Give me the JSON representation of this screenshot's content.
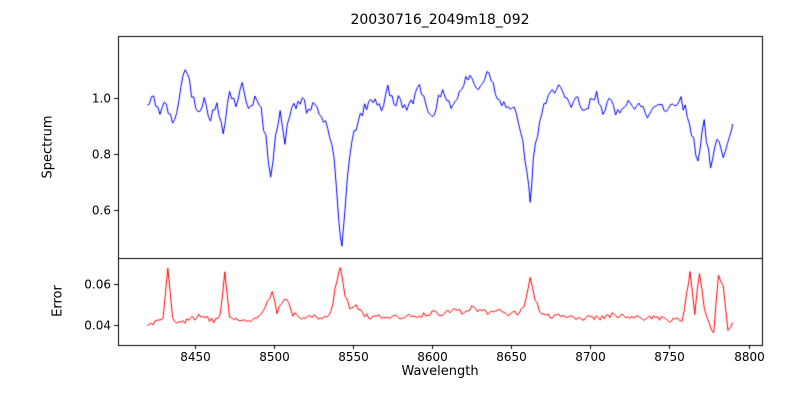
{
  "figure": {
    "title": "20030716_2049m18_092",
    "xlabel": "Wavelength",
    "background": "#ffffff",
    "axes_color": "#000000"
  },
  "chart_data": [
    {
      "type": "line",
      "panel": "top",
      "ylabel": "Spectrum",
      "color": "#0000ff",
      "xlim": [
        8401.5,
        8808.5
      ],
      "ylim": [
        0.43,
        1.22
      ],
      "xticks": [
        8450,
        8500,
        8550,
        8600,
        8650,
        8700,
        8750,
        8800
      ],
      "xtick_labels": [
        "8450",
        "8500",
        "8550",
        "8600",
        "8650",
        "8700",
        "8750",
        "8800"
      ],
      "yticks": [
        0.6,
        0.8,
        1.0
      ],
      "ytick_labels": [
        "0.6",
        "0.8",
        "1.0"
      ],
      "noise_amplitude": 0.02,
      "x": [
        8420,
        8424,
        8428,
        8432,
        8436,
        8440,
        8444,
        8448,
        8452,
        8456,
        8460,
        8464,
        8468,
        8472,
        8476,
        8480,
        8484,
        8488,
        8492,
        8495,
        8498,
        8501,
        8504,
        8507,
        8510,
        8514,
        8518,
        8522,
        8526,
        8530,
        8534,
        8538,
        8541,
        8543,
        8545,
        8548,
        8552,
        8556,
        8560,
        8564,
        8568,
        8572,
        8576,
        8580,
        8584,
        8588,
        8592,
        8596,
        8600,
        8604,
        8608,
        8612,
        8616,
        8620,
        8624,
        8628,
        8632,
        8636,
        8640,
        8644,
        8648,
        8652,
        8656,
        8660,
        8662,
        8664,
        8668,
        8672,
        8676,
        8680,
        8684,
        8688,
        8692,
        8696,
        8700,
        8704,
        8708,
        8712,
        8716,
        8720,
        8724,
        8728,
        8732,
        8736,
        8740,
        8744,
        8748,
        8752,
        8756,
        8760,
        8764,
        8768,
        8772,
        8776,
        8780,
        8784,
        8788,
        8790
      ],
      "y": [
        0.97,
        1.0,
        0.95,
        0.98,
        0.9,
        0.99,
        1.12,
        1.02,
        0.96,
        0.99,
        0.93,
        0.97,
        0.89,
        1.02,
        0.98,
        1.04,
        0.97,
        1.0,
        0.95,
        0.85,
        0.7,
        0.88,
        0.96,
        0.83,
        0.95,
        0.97,
        1.0,
        0.94,
        0.98,
        0.93,
        0.9,
        0.78,
        0.55,
        0.47,
        0.62,
        0.8,
        0.9,
        0.95,
        0.98,
        1.0,
        0.96,
        1.03,
        0.98,
        1.0,
        0.95,
        0.99,
        1.06,
        0.97,
        0.94,
        0.99,
        1.02,
        0.97,
        1.0,
        1.05,
        1.08,
        1.03,
        1.06,
        1.1,
        1.02,
        0.99,
        0.97,
        0.95,
        0.89,
        0.72,
        0.63,
        0.78,
        0.92,
        0.98,
        1.02,
        1.06,
        0.99,
        0.96,
        1.0,
        0.94,
        0.98,
        1.01,
        0.96,
        0.99,
        0.94,
        0.97,
        1.0,
        0.95,
        0.98,
        0.93,
        0.97,
        0.99,
        0.95,
        0.98,
        1.0,
        0.96,
        0.88,
        0.78,
        0.92,
        0.74,
        0.85,
        0.8,
        0.88,
        0.9
      ]
    },
    {
      "type": "line",
      "panel": "bottom",
      "ylabel": "Error",
      "color": "#ff0000",
      "xlim": [
        8401.5,
        8808.5
      ],
      "ylim": [
        0.03,
        0.0725
      ],
      "xticks": [
        8450,
        8500,
        8550,
        8600,
        8650,
        8700,
        8750,
        8800
      ],
      "xtick_labels": [
        "8450",
        "8500",
        "8550",
        "8600",
        "8650",
        "8700",
        "8750",
        "8800"
      ],
      "yticks": [
        0.04,
        0.06
      ],
      "ytick_labels": [
        "0.04",
        "0.06"
      ],
      "noise_amplitude": 0.0012,
      "x": [
        8420,
        8425,
        8430,
        8433,
        8436,
        8440,
        8445,
        8450,
        8455,
        8458,
        8462,
        8466,
        8469,
        8472,
        8476,
        8480,
        8484,
        8488,
        8492,
        8496,
        8499,
        8502,
        8505,
        8508,
        8512,
        8516,
        8520,
        8524,
        8528,
        8532,
        8536,
        8540,
        8542,
        8545,
        8548,
        8552,
        8556,
        8560,
        8564,
        8568,
        8572,
        8576,
        8580,
        8584,
        8588,
        8592,
        8596,
        8600,
        8605,
        8610,
        8615,
        8620,
        8625,
        8630,
        8635,
        8640,
        8645,
        8650,
        8655,
        8658,
        8662,
        8665,
        8668,
        8672,
        8676,
        8680,
        8684,
        8688,
        8692,
        8696,
        8700,
        8705,
        8710,
        8715,
        8720,
        8725,
        8730,
        8735,
        8740,
        8745,
        8750,
        8755,
        8758,
        8761,
        8763,
        8766,
        8769,
        8772,
        8775,
        8778,
        8781,
        8784,
        8787,
        8790
      ],
      "y": [
        0.04,
        0.041,
        0.042,
        0.067,
        0.043,
        0.041,
        0.042,
        0.043,
        0.045,
        0.043,
        0.042,
        0.044,
        0.065,
        0.044,
        0.042,
        0.043,
        0.042,
        0.043,
        0.044,
        0.052,
        0.055,
        0.046,
        0.05,
        0.053,
        0.045,
        0.044,
        0.043,
        0.044,
        0.043,
        0.044,
        0.046,
        0.062,
        0.067,
        0.055,
        0.047,
        0.05,
        0.045,
        0.044,
        0.043,
        0.044,
        0.043,
        0.044,
        0.043,
        0.044,
        0.045,
        0.044,
        0.045,
        0.046,
        0.045,
        0.046,
        0.047,
        0.046,
        0.048,
        0.047,
        0.046,
        0.047,
        0.046,
        0.045,
        0.046,
        0.048,
        0.062,
        0.052,
        0.047,
        0.045,
        0.044,
        0.045,
        0.044,
        0.043,
        0.044,
        0.043,
        0.044,
        0.043,
        0.044,
        0.045,
        0.044,
        0.043,
        0.044,
        0.043,
        0.044,
        0.043,
        0.042,
        0.043,
        0.041,
        0.055,
        0.065,
        0.045,
        0.066,
        0.048,
        0.04,
        0.037,
        0.065,
        0.058,
        0.038,
        0.041
      ]
    }
  ]
}
